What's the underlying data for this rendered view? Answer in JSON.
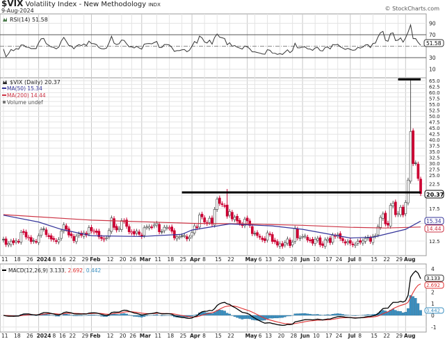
{
  "header": {
    "symbol": "$VIX",
    "name": "Volatility Index - New Methodology",
    "exchange": "INDX",
    "date": "9-Aug-2024",
    "copyright": "© StockCharts.com"
  },
  "rsi": {
    "label": "RSI(14) 51.58",
    "value": "51.58",
    "ticks": [
      90,
      70,
      30,
      10
    ],
    "overbought": 70,
    "oversold": 30,
    "mid": 50,
    "fill_color": "#4a7a4a"
  },
  "price": {
    "label": "$VIX (Daily) 20.37",
    "last": "20.37",
    "ma50_label": "MA(50) 15.34",
    "ma50_value": "15.34",
    "ma200_label": "MA(200) 14.44",
    "ma200_value": "14.44",
    "volume_label": "Volume undef",
    "scale": "log",
    "ticks": [
      "12.5",
      "15.0",
      "17.5",
      "20.0",
      "22.5",
      "25.0",
      "27.5",
      "30.0",
      "32.5",
      "35.0",
      "37.5",
      "40.0",
      "42.5",
      "45.0",
      "47.5",
      "50.0",
      "52.5",
      "55.0",
      "57.5",
      "60.0",
      "62.5",
      "65.0"
    ],
    "up_color": "#555555",
    "down_color": "#cc0033",
    "ma50_color": "#333399",
    "ma200_color": "#cc3344"
  },
  "macd": {
    "label": "MACD(12,26,9) 3.133",
    "signal_text": ", 2.692",
    "hist_text": ", 0.442",
    "macd_value": "3.133",
    "signal_value": "2.692",
    "hist_value": "0.442",
    "ticks": [
      4,
      3,
      2,
      1,
      0,
      -1
    ],
    "macd_color": "#000000",
    "signal_color": "#e03030",
    "hist_color": "#3a8fc0"
  },
  "chart_data": {
    "type": "candlestick",
    "dates": [
      "12-11",
      "12-12",
      "12-13",
      "12-14",
      "12-15",
      "12-18",
      "12-19",
      "12-20",
      "12-21",
      "12-22",
      "12-26",
      "12-27",
      "12-28",
      "12-29",
      "01-02",
      "01-03",
      "01-04",
      "01-05",
      "01-08",
      "01-09",
      "01-10",
      "01-11",
      "01-12",
      "01-16",
      "01-17",
      "01-18",
      "01-19",
      "01-22",
      "01-23",
      "01-24",
      "01-25",
      "01-26",
      "01-29",
      "01-30",
      "01-31",
      "02-01",
      "02-02",
      "02-05",
      "02-06",
      "02-07",
      "02-08",
      "02-09",
      "02-12",
      "02-13",
      "02-14",
      "02-15",
      "02-16",
      "02-20",
      "02-21",
      "02-22",
      "02-23",
      "02-26",
      "02-27",
      "02-28",
      "02-29",
      "03-01",
      "03-04",
      "03-05",
      "03-06",
      "03-07",
      "03-08",
      "03-11",
      "03-12",
      "03-13",
      "03-14",
      "03-15",
      "03-18",
      "03-19",
      "03-20",
      "03-21",
      "03-22",
      "03-25",
      "03-26",
      "03-27",
      "03-28",
      "04-01",
      "04-02",
      "04-03",
      "04-04",
      "04-05",
      "04-08",
      "04-09",
      "04-10",
      "04-11",
      "04-12",
      "04-15",
      "04-16",
      "04-17",
      "04-18",
      "04-19",
      "04-22",
      "04-23",
      "04-24",
      "04-25",
      "04-26",
      "04-29",
      "04-30",
      "05-01",
      "05-02",
      "05-03",
      "05-06",
      "05-07",
      "05-08",
      "05-09",
      "05-10",
      "05-13",
      "05-14",
      "05-15",
      "05-16",
      "05-17",
      "05-20",
      "05-21",
      "05-22",
      "05-23",
      "05-24",
      "05-28",
      "05-29",
      "05-30",
      "05-31",
      "06-03",
      "06-04",
      "06-05",
      "06-06",
      "06-07",
      "06-10",
      "06-11",
      "06-12",
      "06-13",
      "06-14",
      "06-17",
      "06-18",
      "06-20",
      "06-21",
      "06-24",
      "06-25",
      "06-26",
      "06-27",
      "06-28",
      "07-01",
      "07-02",
      "07-03",
      "07-05",
      "07-08",
      "07-09",
      "07-10",
      "07-11",
      "07-12",
      "07-15",
      "07-16",
      "07-17",
      "07-18",
      "07-19",
      "07-22",
      "07-23",
      "07-24",
      "07-25",
      "07-26",
      "07-29",
      "07-30",
      "07-31",
      "08-01",
      "08-02",
      "08-05",
      "08-06",
      "08-07",
      "08-08",
      "08-09"
    ],
    "close": [
      12.63,
      12.07,
      12.19,
      12.48,
      12.28,
      12.56,
      12.45,
      13.67,
      13.65,
      13.03,
      12.99,
      12.43,
      12.47,
      12.45,
      13.2,
      14.04,
      14.13,
      13.35,
      13.08,
      12.76,
      12.69,
      12.44,
      12.7,
      13.84,
      14.79,
      14.13,
      13.3,
      13.19,
      12.55,
      13.14,
      13.45,
      13.26,
      13.6,
      13.31,
      14.35,
      13.88,
      13.85,
      13.67,
      13.06,
      12.83,
      12.79,
      12.93,
      13.93,
      15.85,
      14.38,
      14.01,
      14.24,
      15.42,
      15.34,
      14.54,
      13.75,
      13.74,
      13.43,
      13.84,
      13.4,
      13.11,
      14.33,
      14.46,
      14.5,
      14.44,
      14.74,
      15.01,
      13.75,
      13.75,
      14.4,
      14.41,
      14.33,
      13.82,
      12.92,
      13.06,
      13.06,
      13.19,
      13.24,
      12.78,
      13.01,
      13.65,
      14.61,
      14.33,
      16.35,
      16.03,
      15.19,
      14.98,
      15.8,
      14.91,
      17.31,
      19.23,
      18.4,
      18.21,
      18.0,
      16.14,
      16.94,
      15.69,
      15.97,
      15.37,
      15.03,
      14.67,
      15.65,
      15.39,
      14.68,
      13.49,
      13.49,
      13.23,
      13.0,
      12.69,
      12.55,
      13.6,
      13.42,
      12.45,
      12.42,
      11.99,
      12.15,
      11.86,
      12.29,
      12.77,
      11.93,
      12.36,
      14.28,
      12.91,
      12.92,
      13.11,
      13.16,
      12.63,
      12.58,
      12.22,
      12.74,
      12.85,
      12.04,
      11.94,
      12.66,
      12.75,
      12.3,
      13.28,
      13.2,
      13.33,
      12.84,
      12.55,
      12.24,
      12.44,
      12.22,
      12.03,
      12.09,
      12.48,
      12.37,
      12.51,
      12.85,
      12.89,
      12.46,
      13.12,
      13.19,
      14.48,
      15.93,
      16.52,
      14.91,
      14.72,
      18.04,
      18.46,
      16.39,
      16.6,
      17.69,
      16.36,
      18.59,
      23.39,
      38.57,
      27.71,
      27.85,
      23.79,
      20.37
    ],
    "notable_highs": [
      {
        "date": "04-19",
        "high": 21.36
      },
      {
        "date": "08-05",
        "high": 65.73
      }
    ],
    "ma50": [
      {
        "date": "12-11",
        "v": 16.3
      },
      {
        "date": "01-02",
        "v": 15.2
      },
      {
        "date": "01-16",
        "v": 14.1
      },
      {
        "date": "02-01",
        "v": 13.2
      },
      {
        "date": "03-01",
        "v": 13.1
      },
      {
        "date": "03-25",
        "v": 13.4
      },
      {
        "date": "04-01",
        "v": 14.0
      },
      {
        "date": "04-22",
        "v": 14.9
      },
      {
        "date": "05-15",
        "v": 14.6
      },
      {
        "date": "06-03",
        "v": 14.1
      },
      {
        "date": "07-01",
        "v": 12.9
      },
      {
        "date": "07-15",
        "v": 13.0
      },
      {
        "date": "08-01",
        "v": 14.1
      },
      {
        "date": "08-09",
        "v": 15.34
      }
    ],
    "ma200": [
      {
        "date": "12-11",
        "v": 16.4
      },
      {
        "date": "02-01",
        "v": 15.5
      },
      {
        "date": "04-01",
        "v": 15.0
      },
      {
        "date": "05-01",
        "v": 14.9
      },
      {
        "date": "06-03",
        "v": 14.7
      },
      {
        "date": "07-01",
        "v": 14.4
      },
      {
        "date": "07-22",
        "v": 14.3
      },
      {
        "date": "08-09",
        "v": 14.44
      }
    ],
    "annotations": [
      {
        "type": "horizontal-line",
        "from": "03-25",
        "value": 20.6
      },
      {
        "type": "horizontal-line",
        "from": "07-29",
        "value": 65.9
      }
    ],
    "x_ticks": [
      {
        "label": "11",
        "date": "12-11"
      },
      {
        "label": "18",
        "date": "12-18"
      },
      {
        "label": "26",
        "date": "12-26"
      },
      {
        "label": "2024",
        "date": "01-02",
        "bold": true
      },
      {
        "label": "8",
        "date": "01-08"
      },
      {
        "label": "16",
        "date": "01-16"
      },
      {
        "label": "22",
        "date": "01-22"
      },
      {
        "label": "29",
        "date": "01-29"
      },
      {
        "label": "Feb",
        "date": "02-01",
        "bold": true
      },
      {
        "label": "12",
        "date": "02-12"
      },
      {
        "label": "20",
        "date": "02-20"
      },
      {
        "label": "26",
        "date": "02-26"
      },
      {
        "label": "Mar",
        "date": "03-01",
        "bold": true
      },
      {
        "label": "11",
        "date": "03-11"
      },
      {
        "label": "18",
        "date": "03-18"
      },
      {
        "label": "25",
        "date": "03-25"
      },
      {
        "label": "Apr",
        "date": "04-01",
        "bold": true
      },
      {
        "label": "8",
        "date": "04-08"
      },
      {
        "label": "15",
        "date": "04-15"
      },
      {
        "label": "22",
        "date": "04-22"
      },
      {
        "label": "May",
        "date": "05-01",
        "bold": true
      },
      {
        "label": "6",
        "date": "05-06"
      },
      {
        "label": "13",
        "date": "05-13"
      },
      {
        "label": "20",
        "date": "05-20"
      },
      {
        "label": "28",
        "date": "05-28"
      },
      {
        "label": "Jun",
        "date": "06-03",
        "bold": true
      },
      {
        "label": "10",
        "date": "06-10"
      },
      {
        "label": "17",
        "date": "06-17"
      },
      {
        "label": "24",
        "date": "06-24"
      },
      {
        "label": "Jul",
        "date": "07-01",
        "bold": true
      },
      {
        "label": "8",
        "date": "07-08"
      },
      {
        "label": "15",
        "date": "07-15"
      },
      {
        "label": "22",
        "date": "07-22"
      },
      {
        "label": "29",
        "date": "07-29"
      },
      {
        "label": "Aug",
        "date": "08-01",
        "bold": true
      }
    ]
  }
}
